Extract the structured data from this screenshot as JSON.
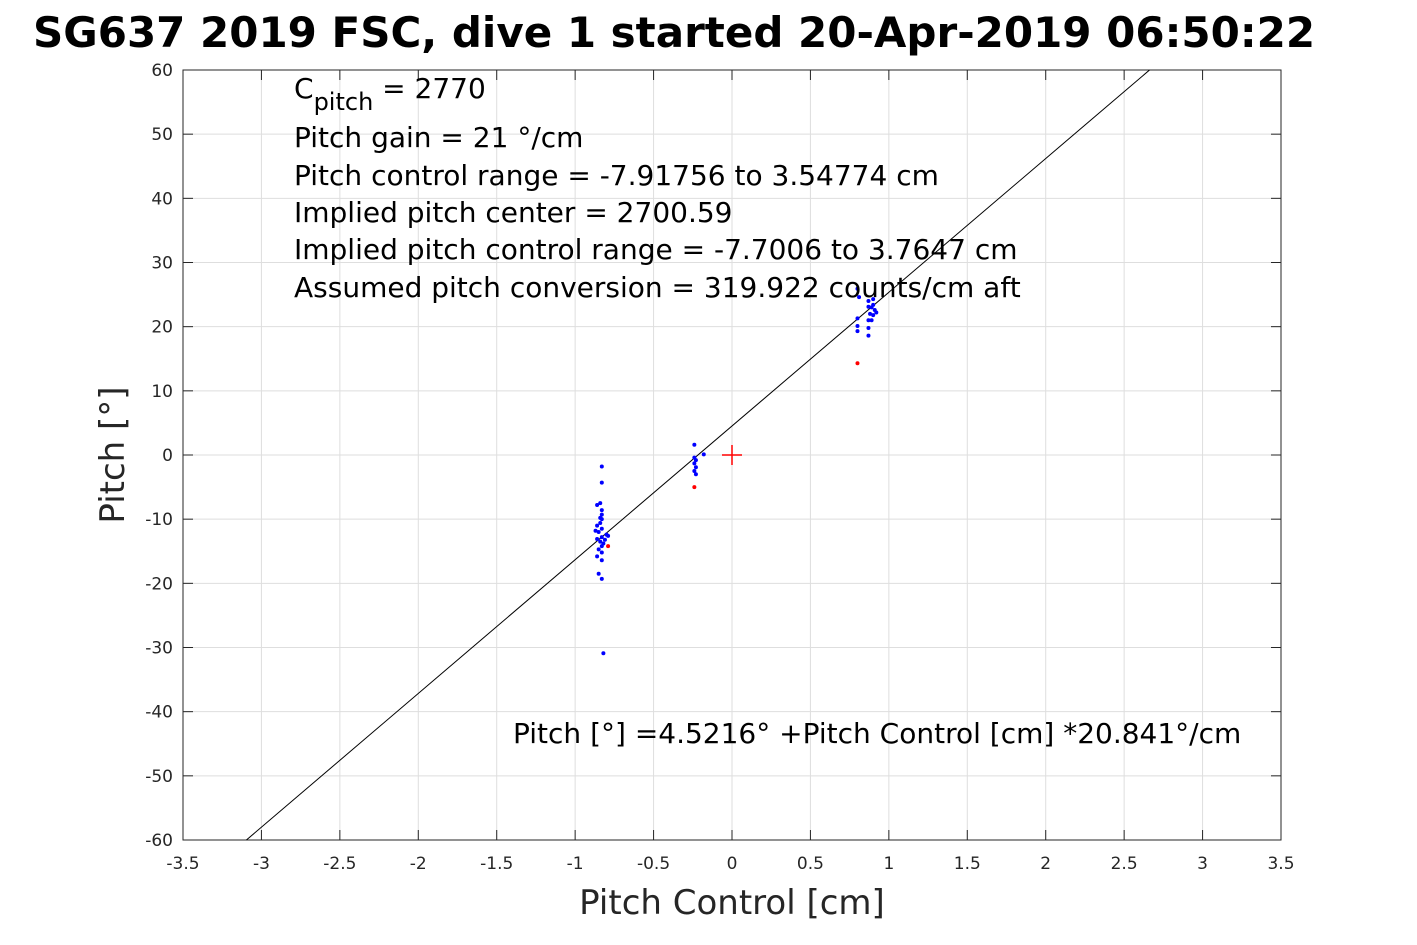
{
  "figure": {
    "title": "SG637 2019 FSC, dive 1 started 20-Apr-2019 06:50:22"
  },
  "chart_data": {
    "type": "scatter",
    "title": "SG637 2019 FSC, dive 1 started 20-Apr-2019 06:50:22",
    "xlabel": "Pitch Control [cm]",
    "ylabel": "Pitch [°]",
    "xlim": [
      -3.5,
      3.5
    ],
    "ylim": [
      -60,
      60
    ],
    "xticks": [
      -3.5,
      -3,
      -2.5,
      -2,
      -1.5,
      -1,
      -0.5,
      0,
      0.5,
      1,
      1.5,
      2,
      2.5,
      3,
      3.5
    ],
    "xtick_labels": [
      "-3.5",
      "-3",
      "-2.5",
      "-2",
      "-1.5",
      "-1",
      "-0.5",
      "0",
      "0.5",
      "1",
      "1.5",
      "2",
      "2.5",
      "3",
      "3.5"
    ],
    "yticks": [
      -60,
      -50,
      -40,
      -30,
      -20,
      -10,
      0,
      10,
      20,
      30,
      40,
      50,
      60
    ],
    "ytick_labels": [
      "-60",
      "-50",
      "-40",
      "-30",
      "-20",
      "-10",
      "0",
      "10",
      "20",
      "30",
      "40",
      "50",
      "60"
    ],
    "grid": true,
    "fit_line": {
      "intercept": 4.5216,
      "slope": 20.841,
      "color": "#000000"
    },
    "center_marker": {
      "x": 0,
      "y": 0,
      "color": "#ff0000"
    },
    "series": [
      {
        "color": "#0000ff",
        "points": [
          [
            -0.83,
            -1.8
          ],
          [
            -0.83,
            -4.3
          ],
          [
            -0.84,
            -7.5
          ],
          [
            -0.86,
            -7.8
          ],
          [
            -0.83,
            -8.6
          ],
          [
            -0.83,
            -9.3
          ],
          [
            -0.83,
            -10.0
          ],
          [
            -0.84,
            -10.6
          ],
          [
            -0.86,
            -11.0
          ],
          [
            -0.83,
            -11.5
          ],
          [
            -0.85,
            -12.0
          ],
          [
            -0.8,
            -12.4
          ],
          [
            -0.83,
            -12.8
          ],
          [
            -0.86,
            -13.1
          ],
          [
            -0.84,
            -13.5
          ],
          [
            -0.82,
            -13.8
          ],
          [
            -0.83,
            -14.2
          ],
          [
            -0.85,
            -14.7
          ],
          [
            -0.83,
            -15.2
          ],
          [
            -0.86,
            -15.8
          ],
          [
            -0.83,
            -16.4
          ],
          [
            -0.85,
            -18.5
          ],
          [
            -0.83,
            -19.3
          ],
          [
            -0.82,
            -30.9
          ],
          [
            -0.79,
            -12.6
          ],
          [
            -0.81,
            -13.2
          ],
          [
            -0.87,
            -11.8
          ],
          [
            -0.84,
            -9.8
          ],
          [
            -0.24,
            1.6
          ],
          [
            -0.24,
            -0.4
          ],
          [
            -0.23,
            -0.8
          ],
          [
            -0.24,
            -1.3
          ],
          [
            -0.23,
            -1.9
          ],
          [
            -0.24,
            -2.5
          ],
          [
            -0.23,
            -3.0
          ],
          [
            -0.18,
            0.1
          ],
          [
            0.8,
            25.9
          ],
          [
            0.81,
            24.6
          ],
          [
            0.8,
            21.3
          ],
          [
            0.8,
            20.1
          ],
          [
            0.8,
            19.3
          ],
          [
            0.87,
            24.0
          ],
          [
            0.87,
            23.1
          ],
          [
            0.88,
            22.0
          ],
          [
            0.87,
            21.0
          ],
          [
            0.87,
            19.8
          ],
          [
            0.87,
            18.6
          ],
          [
            0.9,
            24.3
          ],
          [
            0.9,
            23.4
          ],
          [
            0.91,
            22.6
          ],
          [
            0.9,
            21.8
          ],
          [
            0.89,
            21.0
          ],
          [
            0.92,
            22.2
          ],
          [
            0.89,
            23.0
          ]
        ]
      },
      {
        "color": "#ff0000",
        "points": [
          [
            -0.24,
            -5.0
          ],
          [
            -0.79,
            -14.2
          ],
          [
            0.8,
            14.3
          ]
        ]
      }
    ]
  },
  "annotations": {
    "lines": [
      "Pitch gain = 21 °/cm",
      "Pitch control range = -7.91756 to 3.54774 cm",
      "Implied pitch center = 2700.59",
      "Implied pitch control range = -7.7006 to 3.7647 cm",
      "Assumed pitch conversion = 319.922 counts/cm aft"
    ],
    "cpitch_symbol": "C",
    "cpitch_subscript": "pitch",
    "cpitch_value": " = 2770",
    "fit_equation": "Pitch [°] =4.5216° +Pitch Control [cm] *20.841°/cm"
  }
}
